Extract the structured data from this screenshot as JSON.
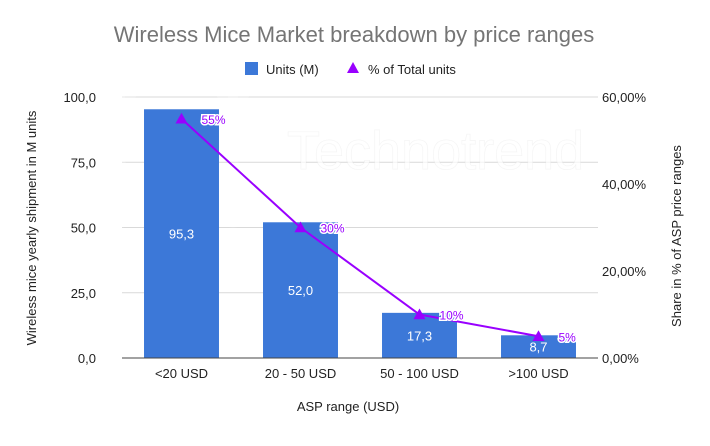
{
  "chart_data": {
    "type": "bar",
    "title": "Wireless Mice Market breakdown by price ranges",
    "categories": [
      "<20 USD",
      "20 - 50 USD",
      "50 - 100 USD",
      ">100 USD"
    ],
    "series": [
      {
        "name": "Units (M)",
        "kind": "bar",
        "axis": "left",
        "color": "#3c78d8",
        "values": [
          95.3,
          52.0,
          17.3,
          8.7
        ],
        "labels": [
          "95,3",
          "52,0",
          "17,3",
          "8,7"
        ]
      },
      {
        "name": "% of Total units",
        "kind": "line",
        "axis": "right",
        "color": "#9900ff",
        "values": [
          55,
          30,
          10,
          5
        ],
        "labels": [
          "55%",
          "30%",
          "10%",
          "5%"
        ]
      }
    ],
    "xlabel": "ASP range (USD)",
    "ylabel": "Wireless mice yearly shipment in M units",
    "y2label": "Share in % of ASP price ranges",
    "ylim": [
      0,
      100
    ],
    "y2lim": [
      0,
      60
    ],
    "yticks": [
      0,
      25,
      50,
      75,
      100
    ],
    "ytick_labels": [
      "0,0",
      "25,0",
      "50,0",
      "75,0",
      "100,0"
    ],
    "y2ticks": [
      0,
      20,
      40,
      60
    ],
    "y2tick_labels": [
      "0,00%",
      "20,00%",
      "40,00%",
      "60,00%"
    ],
    "legend_position": "top",
    "grid": true
  },
  "watermark": {
    "text": "Technotrend"
  },
  "colors": {
    "title": "#757575",
    "text": "#222222",
    "grid": "#d9d9d9",
    "axis": "#444444",
    "bar_label": "#ffffff"
  }
}
